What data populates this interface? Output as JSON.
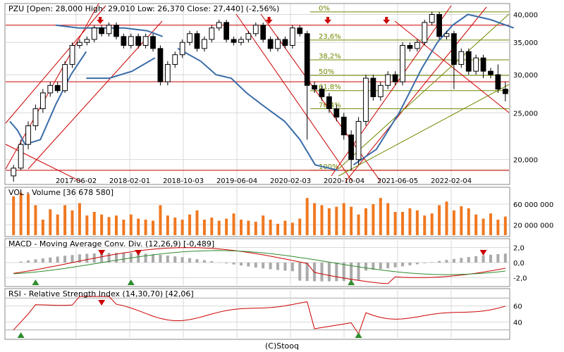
{
  "colors": {
    "panel_bg": "#ffffff",
    "panel_border": "#888888",
    "grid": "#d8d8d8",
    "up_candle": "#ffffff",
    "down_candle": "#000000",
    "trend_red": "#cc0000",
    "fib_green": "#6e8a00",
    "ma_blue": "#3a6da8",
    "volume_orange": "#f07820",
    "macd_red": "#cc0000",
    "macd_green": "#2e8b2e",
    "hist_gray": "#aaaaaa",
    "rsi_red": "#cc0000",
    "signal_green": "#2e8b2e"
  },
  "footer": "(C)Stooq",
  "chart_data": [
    {
      "type": "candlestick",
      "panel": "price",
      "title": "PZU [Open: 28,000  High: 29,010  Low: 26,370  Close: 27,440] (-2,56%)",
      "x_ticks": [
        "2017-06-02",
        "2018-02-01",
        "2018-10-03",
        "2019-06-04",
        "2020-02-03",
        "2020-10-04",
        "2021-06-05",
        "2022-02-04"
      ],
      "y_ticks": [
        {
          "v": 40,
          "label": "40,000"
        },
        {
          "v": 35,
          "label": "35,000"
        },
        {
          "v": 30,
          "label": "30,000"
        },
        {
          "v": 25,
          "label": "25,000"
        },
        {
          "v": 20,
          "label": "20,000"
        }
      ],
      "ylim": [
        18,
        42
      ],
      "scale": "log",
      "candles": [
        [
          18.5,
          19.2,
          18.0,
          19.5
        ],
        [
          19.2,
          21.5,
          19.0,
          22.0
        ],
        [
          21.5,
          23.5,
          21.0,
          24.0
        ],
        [
          23.5,
          25.5,
          23.0,
          26.0
        ],
        [
          25.5,
          27.5,
          25.0,
          28.0
        ],
        [
          27.5,
          28.5,
          27.0,
          29.0
        ],
        [
          28.5,
          27.8,
          27.5,
          29.0
        ],
        [
          27.8,
          31.5,
          27.5,
          32.0
        ],
        [
          31.5,
          34.5,
          31.0,
          35.0
        ],
        [
          34.5,
          35.0,
          34.0,
          35.5
        ],
        [
          35.0,
          35.5,
          34.5,
          36.0
        ],
        [
          35.5,
          37.5,
          35.0,
          38.0
        ],
        [
          37.5,
          36.5,
          36.0,
          38.0
        ],
        [
          36.5,
          38.0,
          36.0,
          38.5
        ],
        [
          38.0,
          36.0,
          35.5,
          38.5
        ],
        [
          36.0,
          34.5,
          34.0,
          36.5
        ],
        [
          34.5,
          36.0,
          34.0,
          36.5
        ],
        [
          36.0,
          34.5,
          34.0,
          36.5
        ],
        [
          34.5,
          36.0,
          34.0,
          36.5
        ],
        [
          36.0,
          34.0,
          33.5,
          36.5
        ],
        [
          34.0,
          29.0,
          28.5,
          34.5
        ],
        [
          29.0,
          31.5,
          28.5,
          32.0
        ],
        [
          31.5,
          33.0,
          31.0,
          33.5
        ],
        [
          33.0,
          35.0,
          32.5,
          35.5
        ],
        [
          35.0,
          36.5,
          34.5,
          37.0
        ],
        [
          36.5,
          34.0,
          33.5,
          37.0
        ],
        [
          34.0,
          35.5,
          33.5,
          36.0
        ],
        [
          35.5,
          37.5,
          35.0,
          38.0
        ],
        [
          37.5,
          38.5,
          37.0,
          39.0
        ],
        [
          38.5,
          35.5,
          35.0,
          39.0
        ],
        [
          35.5,
          35.0,
          34.5,
          36.0
        ],
        [
          35.0,
          35.5,
          34.5,
          36.0
        ],
        [
          35.5,
          36.5,
          35.0,
          37.0
        ],
        [
          36.5,
          38.0,
          36.0,
          38.5
        ],
        [
          38.0,
          35.5,
          35.0,
          38.5
        ],
        [
          35.5,
          34.0,
          33.5,
          36.0
        ],
        [
          34.0,
          35.5,
          33.5,
          36.0
        ],
        [
          35.5,
          34.5,
          34.0,
          36.0
        ],
        [
          34.5,
          37.5,
          34.0,
          38.0
        ],
        [
          37.5,
          36.5,
          36.0,
          38.0
        ],
        [
          36.5,
          28.5,
          22.0,
          37.0
        ],
        [
          28.5,
          28.0,
          27.5,
          29.0
        ],
        [
          28.0,
          27.0,
          26.5,
          28.5
        ],
        [
          27.0,
          25.5,
          25.0,
          27.5
        ],
        [
          25.5,
          24.5,
          24.0,
          26.0
        ],
        [
          24.5,
          22.5,
          22.0,
          25.0
        ],
        [
          22.5,
          20.0,
          19.0,
          23.0
        ],
        [
          20.0,
          24.0,
          19.5,
          24.5
        ],
        [
          24.0,
          29.5,
          23.5,
          30.0
        ],
        [
          29.5,
          27.0,
          26.5,
          30.0
        ],
        [
          27.0,
          28.5,
          26.5,
          29.0
        ],
        [
          28.5,
          30.0,
          28.0,
          30.5
        ],
        [
          30.0,
          29.0,
          28.5,
          30.5
        ],
        [
          29.0,
          34.5,
          28.5,
          35.0
        ],
        [
          34.5,
          34.0,
          33.5,
          35.0
        ],
        [
          34.0,
          35.0,
          33.5,
          35.5
        ],
        [
          35.0,
          38.5,
          34.5,
          39.0
        ],
        [
          38.5,
          40.0,
          38.0,
          40.5
        ],
        [
          40.0,
          36.0,
          35.5,
          40.5
        ],
        [
          36.0,
          36.5,
          35.5,
          37.0
        ],
        [
          36.5,
          31.5,
          28.0,
          37.0
        ],
        [
          31.5,
          33.5,
          31.0,
          34.0
        ],
        [
          33.5,
          30.5,
          30.0,
          34.0
        ],
        [
          30.5,
          32.5,
          30.0,
          33.0
        ],
        [
          32.5,
          30.5,
          29.5,
          33.0
        ],
        [
          30.5,
          30.0,
          29.5,
          31.0
        ],
        [
          30.0,
          28.0,
          27.5,
          31.5
        ],
        [
          28.0,
          27.4,
          26.4,
          29.0
        ]
      ],
      "ma": [
        [
          0,
          24
        ],
        [
          2,
          23
        ],
        [
          4,
          21.5
        ],
        [
          8,
          22
        ],
        [
          12,
          26
        ],
        [
          16,
          30
        ],
        [
          20,
          33.5
        ],
        [
          12,
          38
        ],
        [
          18,
          37.5
        ],
        [
          24,
          37.5
        ],
        [
          30,
          37.5
        ],
        [
          36,
          37
        ],
        [
          40,
          36
        ],
        [
          20,
          29.5
        ],
        [
          26,
          29.5
        ],
        [
          32,
          30.5
        ],
        [
          38,
          32.5
        ],
        [
          44,
          34
        ],
        [
          50,
          32
        ],
        [
          54,
          30
        ],
        [
          58,
          29.5
        ],
        [
          62,
          27.5
        ],
        [
          66,
          26
        ],
        [
          72,
          24
        ],
        [
          76,
          22
        ],
        [
          80,
          19.5
        ],
        [
          86,
          19
        ],
        [
          90,
          19.5
        ],
        [
          96,
          21
        ],
        [
          102,
          25
        ],
        [
          108,
          31
        ],
        [
          112,
          35
        ],
        [
          116,
          38
        ],
        [
          120,
          40
        ],
        [
          126,
          39
        ],
        [
          132,
          37.5
        ]
      ],
      "fib_levels": [
        {
          "v": 40.5,
          "label": "0%"
        },
        {
          "v": 35.4,
          "label": "23,6%"
        },
        {
          "v": 32.2,
          "label": "38,2%"
        },
        {
          "v": 29.9,
          "label": "50%"
        },
        {
          "v": 27.8,
          "label": "61,8%"
        },
        {
          "v": 25.5,
          "label": "76,4%"
        },
        {
          "v": 19.0,
          "label": "100%"
        }
      ],
      "horizontal_levels": [
        38.0,
        29.0,
        19.0
      ],
      "sell_arrows": [
        12,
        35,
        43,
        51
      ]
    },
    {
      "type": "bar",
      "panel": "volume",
      "title": "VOL - Volume [36 678 580]",
      "y_ticks": [
        {
          "v": 60,
          "label": "60 000 000"
        },
        {
          "v": 20,
          "label": "20 000 000"
        }
      ],
      "ylim": [
        0,
        90
      ],
      "values": [
        75,
        82,
        80,
        58,
        30,
        50,
        40,
        58,
        48,
        62,
        38,
        45,
        40,
        35,
        38,
        30,
        40,
        32,
        30,
        28,
        58,
        38,
        34,
        30,
        40,
        48,
        30,
        34,
        28,
        32,
        42,
        30,
        28,
        26,
        38,
        30,
        22,
        28,
        24,
        32,
        72,
        62,
        58,
        52,
        55,
        62,
        55,
        40,
        52,
        60,
        72,
        62,
        45,
        45,
        52,
        48,
        38,
        42,
        58,
        65,
        48,
        56,
        52,
        40,
        32,
        42,
        30,
        36
      ]
    },
    {
      "type": "line",
      "panel": "macd",
      "title": "MACD - Moving Average Conv. Div. (12,26,9) [-0,489]",
      "y_ticks": [
        {
          "v": 2,
          "label": "2,0"
        },
        {
          "v": 0,
          "label": "0,0"
        },
        {
          "v": -2,
          "label": "-2,0"
        }
      ],
      "ylim": [
        -3,
        3
      ]
    },
    {
      "type": "line",
      "panel": "rsi",
      "title": "RSI - Relative Strength Index (14,30,70) [42,06]",
      "y_ticks": [
        {
          "v": 60,
          "label": "60"
        },
        {
          "v": 40,
          "label": "40"
        }
      ],
      "ylim": [
        20,
        80
      ]
    }
  ]
}
